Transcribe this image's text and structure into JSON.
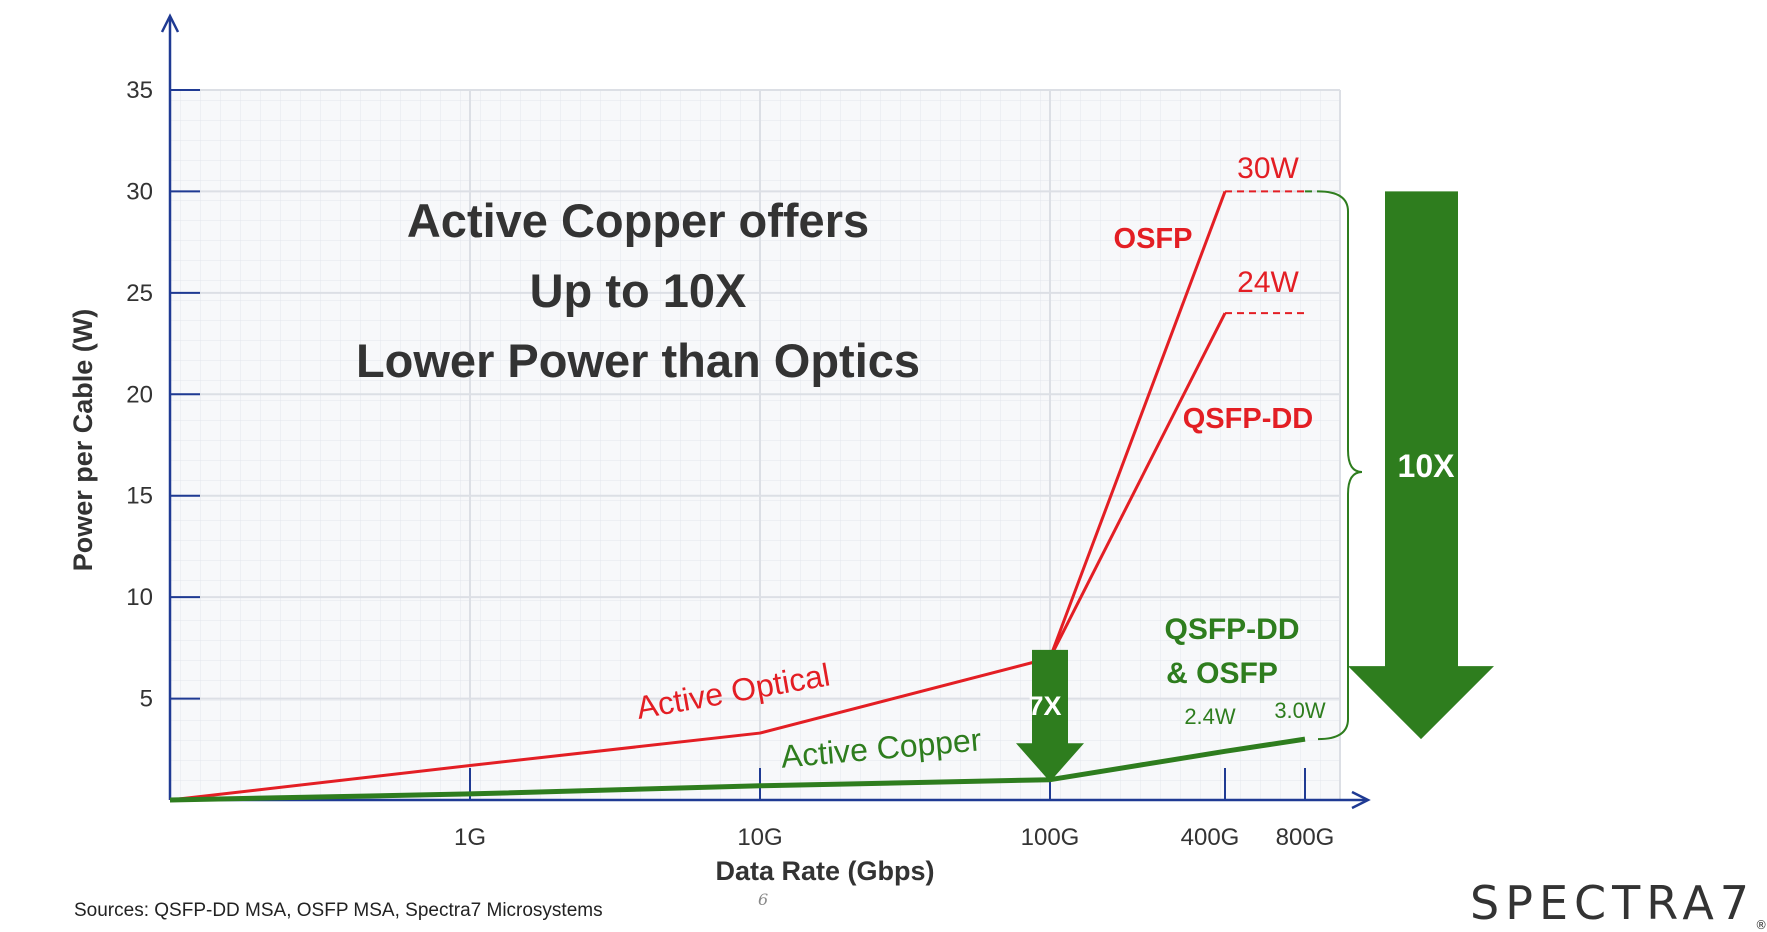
{
  "chart_data": {
    "type": "line",
    "title": "",
    "xlabel": "Data Rate (Gbps)",
    "ylabel": "Power per Cable (W)",
    "ylim": [
      0,
      35
    ],
    "yticks": [
      5,
      10,
      15,
      20,
      25,
      30,
      35
    ],
    "x_categories": [
      "1G",
      "10G",
      "100G",
      "400G",
      "800G"
    ],
    "grid": true,
    "series": [
      {
        "name": "Active Optical",
        "color": "#e31e24",
        "points": [
          [
            "0",
            0
          ],
          [
            "1G",
            1.7
          ],
          [
            "10G",
            3.3
          ],
          [
            "100G",
            7.0
          ]
        ]
      },
      {
        "name": "OSFP",
        "color": "#e31e24",
        "points": [
          [
            "100G",
            7.0
          ],
          [
            "400G",
            30
          ]
        ]
      },
      {
        "name": "QSFP-DD",
        "color": "#e31e24",
        "points": [
          [
            "100G",
            7.0
          ],
          [
            "400G",
            24
          ]
        ]
      },
      {
        "name": "Active Copper",
        "color": "#2e7d1e",
        "points": [
          [
            "0",
            0
          ],
          [
            "1G",
            0.3
          ],
          [
            "10G",
            0.7
          ],
          [
            "100G",
            1.0
          ],
          [
            "400G",
            2.4
          ],
          [
            "800G",
            3.0
          ]
        ]
      }
    ],
    "annotations": {
      "headline": [
        "Active Copper offers",
        "Up to 10X",
        "Lower Power than Optics"
      ],
      "osfp_label": "OSFP",
      "qsfpdd_label": "QSFP-DD",
      "osfp_value": "30W",
      "qsfpdd_value": "24W",
      "green_label_1": "QSFP-DD",
      "green_label_2": "& OSFP",
      "green_value_400": "2.4W",
      "green_value_800": "3.0W",
      "small_arrow_label": "7X",
      "big_arrow_label": "10X",
      "active_optical_label": "Active Optical",
      "active_copper_label": "Active Copper"
    }
  },
  "footer": {
    "sources": "Sources: QSFP-DD MSA, OSFP MSA, Spectra7 Microsystems",
    "page_number": "6",
    "logo": "SPECTRA7"
  },
  "colors": {
    "red": "#e31e24",
    "green": "#2e7d1e",
    "axis": "#1f3a93",
    "text": "#333333"
  }
}
